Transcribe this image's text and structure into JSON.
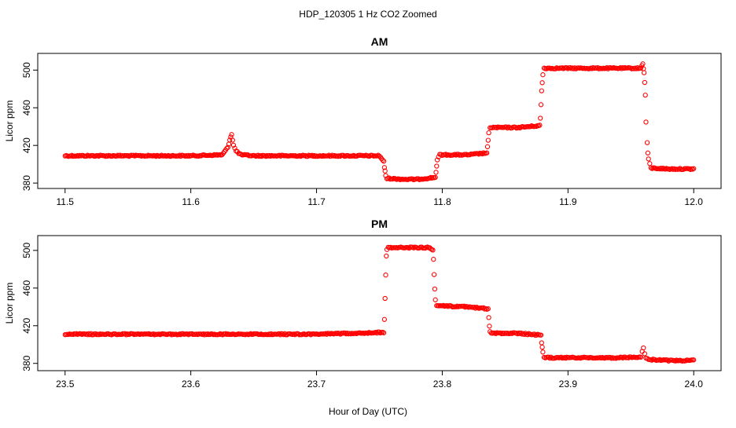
{
  "figure": {
    "title": "HDP_120305  1 Hz CO2 Zoomed",
    "xlabel": "Hour of Day (UTC)"
  },
  "colors": {
    "points": "#ff0000",
    "axis": "#000000",
    "background": "#ffffff"
  },
  "chart_data": [
    {
      "type": "scatter",
      "title": "AM",
      "xlabel": "Hour of Day (UTC)",
      "ylabel": "Licor ppm",
      "xlim": [
        11.5,
        12.0
      ],
      "ylim": [
        380,
        512
      ],
      "x_ticks": [
        "11.5",
        "11.6",
        "11.7",
        "11.8",
        "11.9",
        "12.0"
      ],
      "y_ticks": [
        "380",
        "420",
        "460",
        "500"
      ],
      "grid": false,
      "marker": "open-circle",
      "series": [
        {
          "x": [
            11.5,
            11.55,
            11.6,
            11.625,
            11.6295,
            11.631,
            11.6325,
            11.634,
            11.636,
            11.64,
            11.65,
            11.7,
            11.75,
            11.7535,
            11.754,
            11.7545,
            11.755,
            11.756,
            11.77,
            11.78,
            11.7945,
            11.795,
            11.7955,
            11.796,
            11.797,
            11.798,
            11.8,
            11.82,
            11.8355,
            11.836,
            11.8365,
            11.837,
            11.838,
            11.85,
            11.86,
            11.8775,
            11.878,
            11.8785,
            11.879,
            11.8795,
            11.88,
            11.881,
            11.9,
            11.93,
            11.958,
            11.9595,
            11.96,
            11.9605,
            11.961,
            11.9615,
            11.962,
            11.963,
            11.9635,
            11.964,
            11.966,
            11.98,
            12.0
          ],
          "y": [
            409,
            409,
            409,
            410,
            418,
            426,
            432,
            420,
            414,
            410,
            409,
            409,
            409,
            403,
            396,
            393,
            388,
            385,
            384,
            384,
            386,
            392,
            398,
            404,
            408,
            410,
            410,
            410,
            412,
            418,
            425,
            433,
            439,
            439,
            439,
            441,
            449,
            463,
            478,
            487,
            495,
            502,
            502,
            502,
            502,
            507,
            502,
            497,
            487,
            473,
            445,
            423,
            412,
            405,
            396,
            395,
            395
          ]
        }
      ]
    },
    {
      "type": "scatter",
      "title": "PM",
      "xlabel": "Hour of Day (UTC)",
      "ylabel": "Licor ppm",
      "xlim": [
        23.5,
        24.0
      ],
      "ylim": [
        378,
        510
      ],
      "x_ticks": [
        "23.5",
        "23.6",
        "23.7",
        "23.8",
        "23.9",
        "24.0"
      ],
      "y_ticks": [
        "380",
        "420",
        "460",
        "500"
      ],
      "grid": false,
      "marker": "open-circle",
      "series": [
        {
          "x": [
            23.5,
            23.6,
            23.7,
            23.7535,
            23.754,
            23.7545,
            23.755,
            23.7555,
            23.756,
            23.757,
            23.77,
            23.79,
            23.7925,
            23.793,
            23.7935,
            23.794,
            23.7945,
            23.7955,
            23.8,
            23.82,
            23.8365,
            23.837,
            23.8375,
            23.838,
            23.839,
            23.86,
            23.8785,
            23.879,
            23.8795,
            23.88,
            23.881,
            23.91,
            23.94,
            23.958,
            23.959,
            23.96,
            23.961,
            23.962,
            23.965,
            23.98,
            24.0
          ],
          "y": [
            411,
            411,
            411,
            413,
            426,
            449,
            474,
            494,
            501,
            503,
            503,
            503,
            501,
            491,
            474,
            459,
            447,
            442,
            441,
            440,
            438,
            428,
            420,
            414,
            412,
            412,
            410,
            402,
            397,
            392,
            386,
            386,
            386,
            387,
            393,
            397,
            390,
            386,
            384,
            383,
            383
          ]
        }
      ]
    }
  ]
}
